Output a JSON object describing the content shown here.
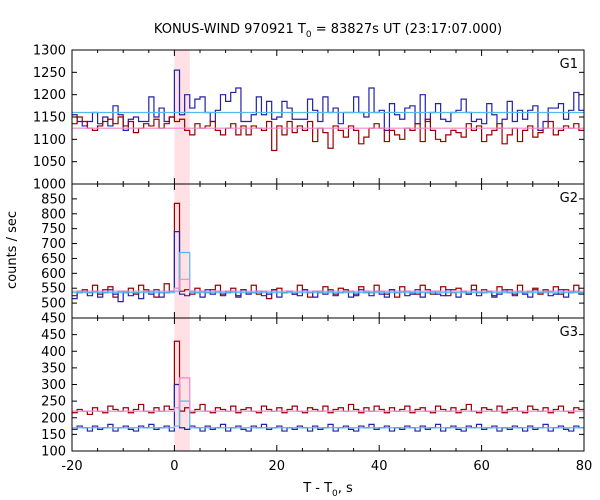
{
  "chart_data": {
    "type": "line",
    "title": "KONUS-WIND 970921 T",
    "title_sub": "0",
    "title_rest": " = 83827s UT (23:17:07.000)",
    "xlabel": "T - T",
    "xlabel_sub": "0",
    "xlabel_rest": ", s",
    "ylabel": "counts / sec",
    "xlim": [
      -20,
      80
    ],
    "x_ticks": [
      -20,
      0,
      20,
      40,
      60,
      80
    ],
    "highlight_x": [
      0,
      3
    ],
    "colors": {
      "darkred": "#990000",
      "blue": "#2222aa",
      "lightblue": "#55bbee",
      "pink": "#ee88cc",
      "highlight": "#ffe0e4"
    },
    "panels": [
      {
        "name": "G1",
        "ylim": [
          1000,
          1300
        ],
        "y_ticks": [
          1000,
          1050,
          1100,
          1150,
          1200,
          1250,
          1300
        ],
        "series": [
          {
            "color_key": "blue",
            "x0": -20,
            "dx": 1,
            "values": [
              1155,
              1140,
              1130,
              1140,
              1160,
              1135,
              1150,
              1130,
              1175,
              1155,
              1120,
              1145,
              1150,
              1140,
              1140,
              1195,
              1150,
              1170,
              1140,
              1150,
              1255,
              1155,
              1200,
              1170,
              1190,
              1195,
              1160,
              1140,
              1165,
              1200,
              1185,
              1205,
              1215,
              1140,
              1140,
              1155,
              1195,
              1155,
              1185,
              1145,
              1150,
              1185,
              1170,
              1145,
              1145,
              1145,
              1190,
              1165,
              1140,
              1195,
              1160,
              1170,
              1135,
              1160,
              1160,
              1195,
              1160,
              1150,
              1215,
              1160,
              1165,
              1120,
              1180,
              1155,
              1145,
              1170,
              1175,
              1135,
              1200,
              1140,
              1160,
              1180,
              1145,
              1140,
              1160,
              1165,
              1190,
              1160,
              1140,
              1145,
              1135,
              1180,
              1155,
              1125,
              1145,
              1185,
              1140,
              1165,
              1145,
              1165,
              1175,
              1120,
              1140,
              1170,
              1170,
              1180,
              1145,
              1165,
              1205,
              1165
            ]
          },
          {
            "color_key": "darkred",
            "x0": -20,
            "dx": 1,
            "values": [
              1135,
              1150,
              1140,
              1125,
              1120,
              1130,
              1140,
              1145,
              1135,
              1150,
              1130,
              1140,
              1115,
              1125,
              1135,
              1130,
              1145,
              1125,
              1135,
              1150,
              1140,
              1145,
              1120,
              1110,
              1135,
              1125,
              1130,
              1140,
              1120,
              1110,
              1125,
              1135,
              1110,
              1130,
              1110,
              1130,
              1125,
              1120,
              1140,
              1075,
              1130,
              1110,
              1140,
              1115,
              1130,
              1120,
              1140,
              1095,
              1125,
              1115,
              1080,
              1130,
              1120,
              1105,
              1130,
              1120,
              1090,
              1105,
              1125,
              1135,
              1125,
              1095,
              1120,
              1110,
              1100,
              1125,
              1120,
              1135,
              1095,
              1145,
              1120,
              1100,
              1095,
              1110,
              1120,
              1115,
              1105,
              1135,
              1120,
              1130,
              1095,
              1110,
              1120,
              1135,
              1090,
              1110,
              1125,
              1095,
              1120,
              1130,
              1105,
              1115,
              1125,
              1140,
              1110,
              1120,
              1130,
              1125,
              1135,
              1120
            ]
          },
          {
            "color_key": "lightblue",
            "segments": [
              [
                -20,
                1160
              ],
              [
                80,
                1160
              ]
            ]
          },
          {
            "color_key": "pink",
            "segments": [
              [
                -20,
                1125
              ],
              [
                80,
                1125
              ]
            ]
          }
        ]
      },
      {
        "name": "G2",
        "ylim": [
          450,
          900
        ],
        "y_ticks": [
          450,
          500,
          550,
          600,
          650,
          700,
          750,
          800,
          850
        ],
        "series": [
          {
            "color_key": "darkred",
            "x0": -20,
            "dx": 1,
            "values": [
              525,
              540,
              545,
              535,
              560,
              530,
              545,
              555,
              520,
              540,
              535,
              550,
              530,
              560,
              545,
              540,
              520,
              535,
              565,
              540,
              835,
              540,
              545,
              530,
              550,
              540,
              535,
              545,
              560,
              530,
              540,
              550,
              525,
              545,
              535,
              560,
              530,
              540,
              515,
              545,
              550,
              535,
              540,
              530,
              560,
              545,
              520,
              540,
              535,
              555,
              540,
              530,
              550,
              545,
              540,
              525,
              555,
              540,
              535,
              560,
              540,
              530,
              545,
              520,
              555,
              540,
              535,
              530,
              560,
              545,
              530,
              540,
              555,
              525,
              545,
              550,
              540,
              530,
              560,
              535,
              545,
              540,
              525,
              555,
              540,
              545,
              530,
              560,
              535,
              540,
              550,
              530,
              545,
              540,
              555,
              530,
              545,
              540,
              560,
              535
            ]
          },
          {
            "color_key": "blue",
            "x0": -20,
            "dx": 1,
            "values": [
              515,
              535,
              540,
              525,
              540,
              520,
              535,
              545,
              530,
              505,
              540,
              525,
              535,
              515,
              540,
              530,
              545,
              520,
              535,
              540,
              740,
              530,
              525,
              540,
              535,
              520,
              545,
              530,
              540,
              525,
              535,
              540,
              520,
              545,
              530,
              535,
              540,
              525,
              530,
              545,
              520,
              535,
              540,
              530,
              525,
              545,
              535,
              520,
              540,
              530,
              545,
              525,
              535,
              540,
              520,
              530,
              545,
              535,
              525,
              540,
              530,
              520,
              545,
              535,
              540,
              525,
              530,
              545,
              520,
              535,
              540,
              530,
              525,
              545,
              535,
              520,
              540,
              530,
              545,
              525,
              535,
              540,
              520,
              530,
              545,
              535,
              525,
              540,
              530,
              520,
              545,
              535,
              540,
              525,
              530,
              545,
              520,
              535,
              540,
              530
            ]
          },
          {
            "color_key": "lightblue",
            "segments": [
              [
                -20,
                535
              ],
              [
                0,
                535
              ],
              [
                0,
                540
              ],
              [
                1,
                540
              ],
              [
                1,
                670
              ],
              [
                3,
                670
              ],
              [
                3,
                535
              ],
              [
                80,
                535
              ]
            ]
          },
          {
            "color_key": "pink",
            "segments": [
              [
                -20,
                540
              ],
              [
                0,
                540
              ],
              [
                0,
                550
              ],
              [
                1,
                550
              ],
              [
                1,
                580
              ],
              [
                3,
                580
              ],
              [
                3,
                540
              ],
              [
                80,
                540
              ]
            ]
          }
        ]
      },
      {
        "name": "G3",
        "ylim": [
          100,
          500
        ],
        "y_ticks": [
          100,
          150,
          200,
          250,
          300,
          350,
          400,
          450
        ],
        "series": [
          {
            "color_key": "darkred",
            "x0": -20,
            "dx": 1,
            "values": [
              215,
              225,
              220,
              210,
              230,
              220,
              215,
              235,
              225,
              220,
              230,
              215,
              225,
              240,
              220,
              215,
              230,
              220,
              235,
              225,
              430,
              220,
              230,
              215,
              225,
              240,
              220,
              215,
              230,
              225,
              220,
              235,
              215,
              225,
              230,
              220,
              215,
              235,
              225,
              220,
              230,
              215,
              225,
              235,
              220,
              215,
              230,
              225,
              220,
              235,
              215,
              225,
              230,
              220,
              240,
              225,
              215,
              230,
              220,
              235,
              225,
              215,
              230,
              220,
              225,
              235,
              215,
              225,
              230,
              220,
              215,
              235,
              225,
              220,
              230,
              215,
              225,
              240,
              220,
              215,
              230,
              225,
              220,
              235,
              215,
              225,
              230,
              220,
              215,
              235,
              225,
              220,
              230,
              215,
              225,
              235,
              220,
              215,
              230,
              225
            ]
          },
          {
            "color_key": "blue",
            "x0": -20,
            "dx": 1,
            "values": [
              165,
              175,
              170,
              160,
              175,
              165,
              170,
              180,
              160,
              170,
              175,
              165,
              160,
              175,
              170,
              180,
              165,
              170,
              175,
              160,
              300,
              170,
              165,
              175,
              170,
              160,
              175,
              165,
              170,
              180,
              160,
              170,
              175,
              165,
              160,
              175,
              170,
              180,
              165,
              170,
              175,
              160,
              170,
              165,
              175,
              170,
              160,
              175,
              165,
              170,
              180,
              160,
              170,
              175,
              165,
              160,
              175,
              170,
              180,
              165,
              170,
              175,
              160,
              170,
              165,
              175,
              170,
              160,
              175,
              165,
              170,
              180,
              160,
              170,
              175,
              165,
              160,
              175,
              170,
              180,
              165,
              170,
              175,
              160,
              170,
              165,
              175,
              170,
              160,
              175,
              165,
              170,
              180,
              160,
              170,
              175,
              165,
              160,
              175,
              170
            ]
          },
          {
            "color_key": "lightblue",
            "segments": [
              [
                -20,
                170
              ],
              [
                0,
                170
              ],
              [
                0,
                175
              ],
              [
                1,
                175
              ],
              [
                1,
                250
              ],
              [
                3,
                250
              ],
              [
                3,
                170
              ],
              [
                80,
                170
              ]
            ]
          },
          {
            "color_key": "pink",
            "segments": [
              [
                -20,
                220
              ],
              [
                0,
                220
              ],
              [
                0,
                230
              ],
              [
                1,
                230
              ],
              [
                1,
                320
              ],
              [
                3,
                320
              ],
              [
                3,
                220
              ],
              [
                80,
                220
              ]
            ]
          }
        ]
      }
    ]
  }
}
